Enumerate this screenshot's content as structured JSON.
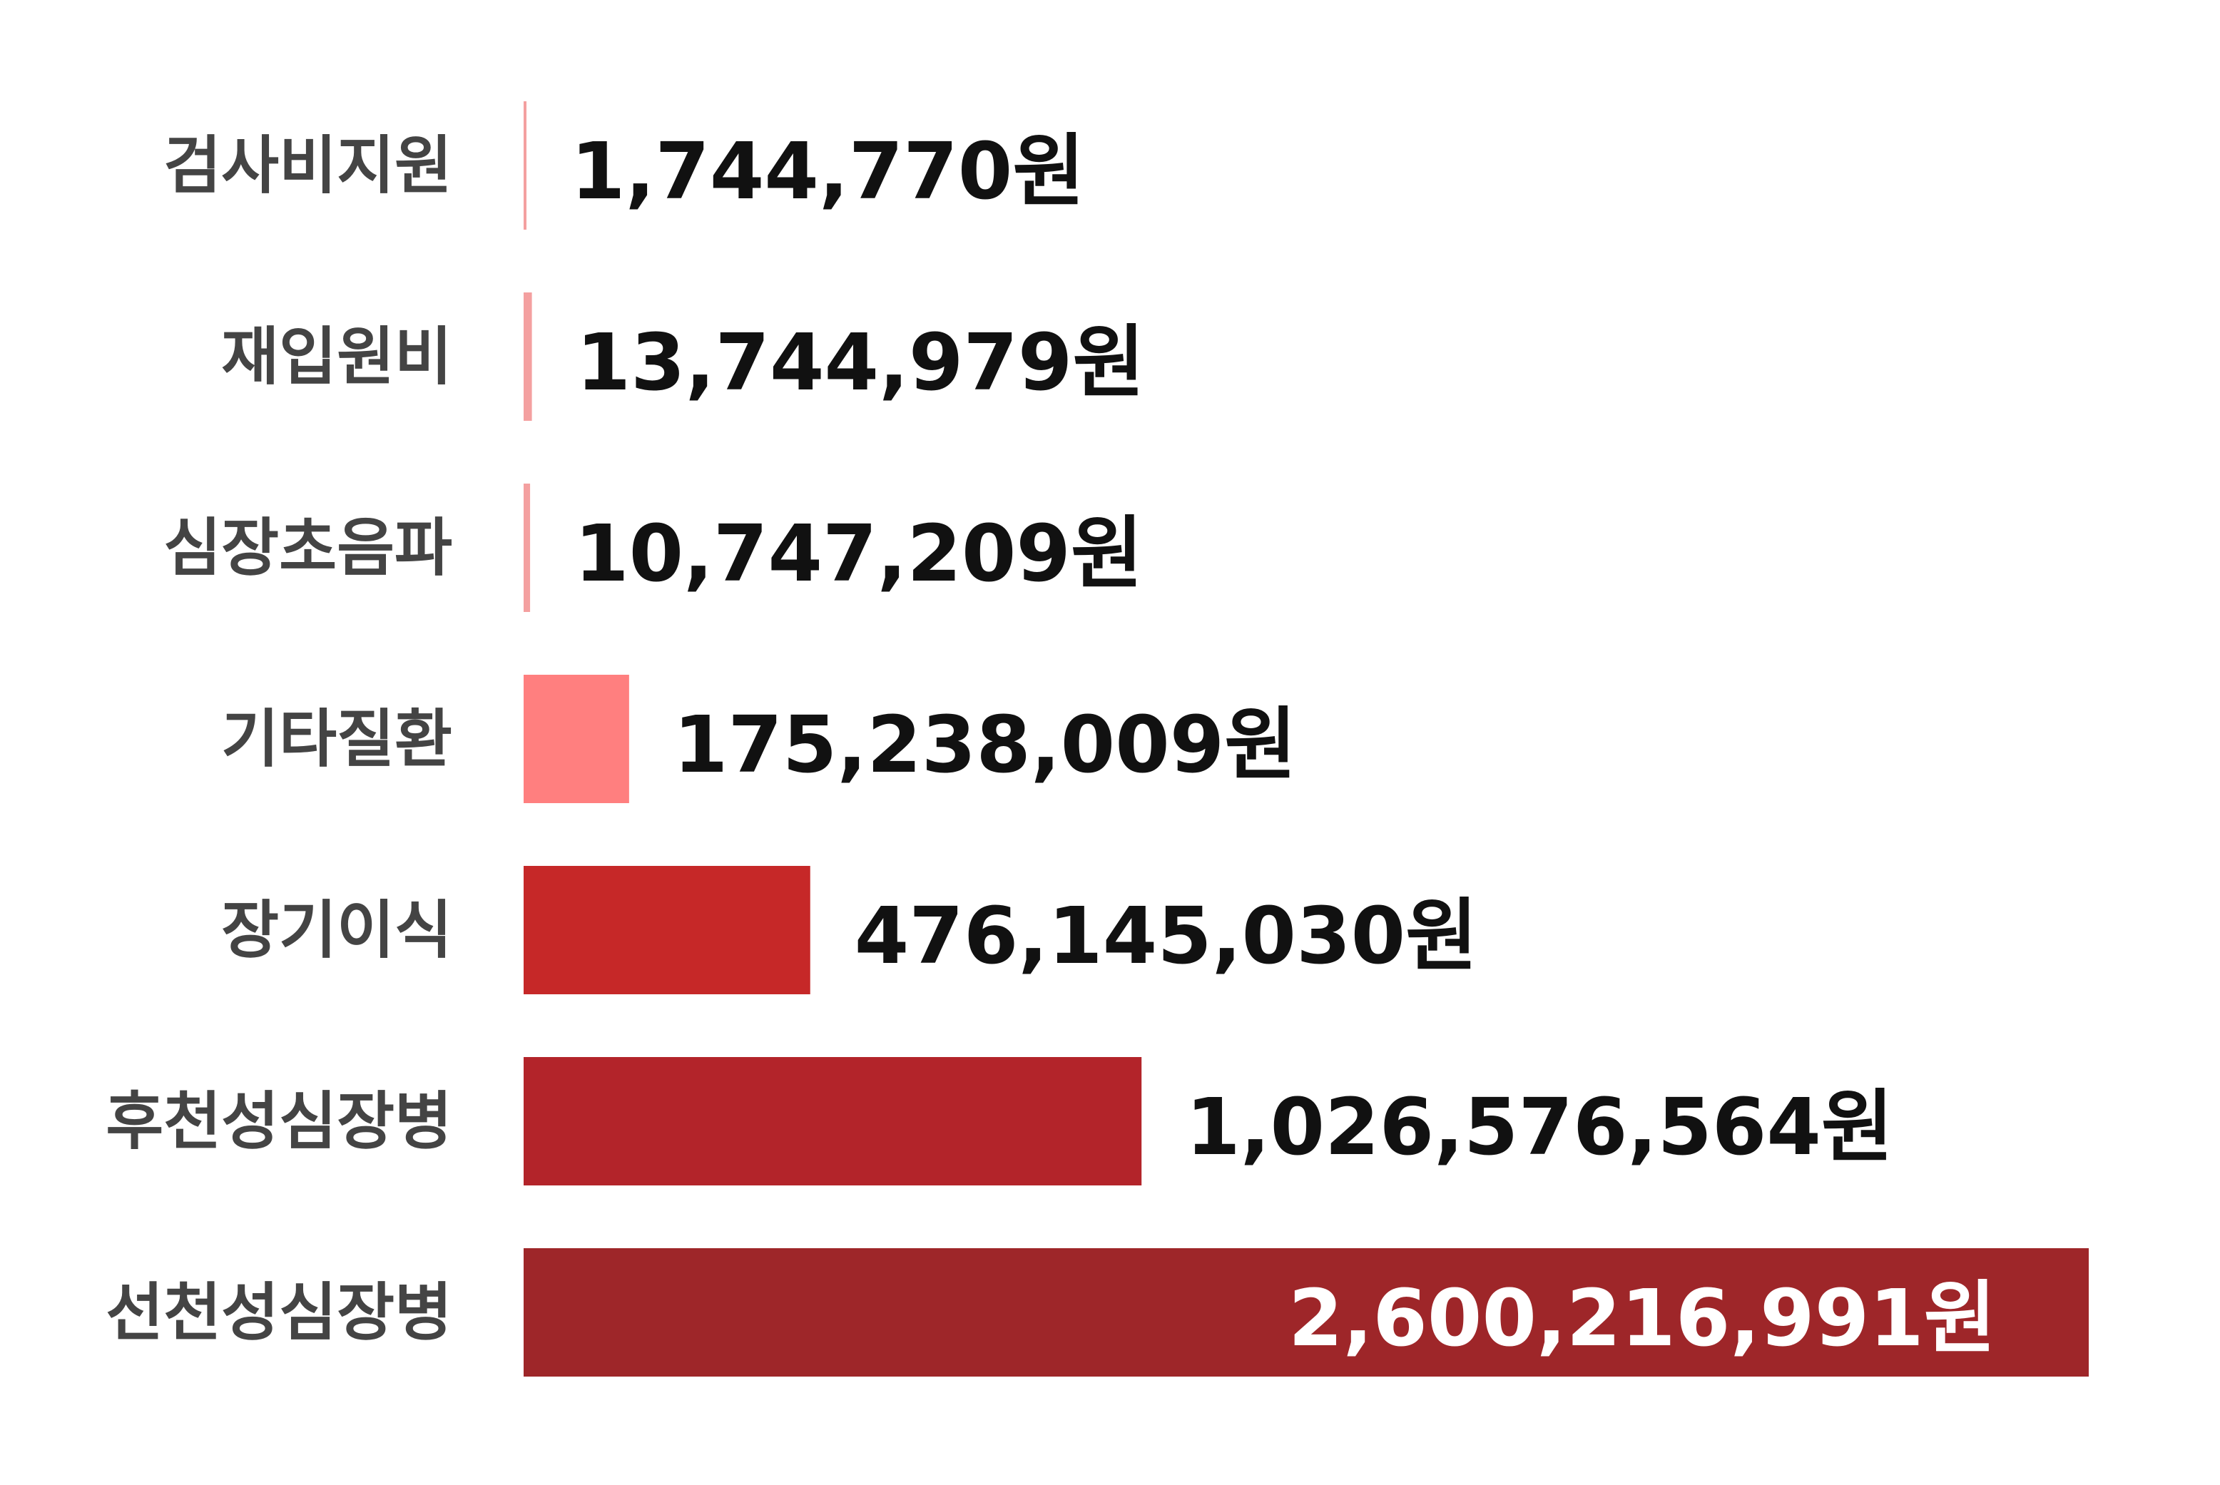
{
  "chart_data": {
    "type": "bar",
    "orientation": "horizontal",
    "categories": [
      "검사비지원",
      "재입원비",
      "심장초음파",
      "기타질환",
      "장기이식",
      "후천성심장병",
      "선천성심장병"
    ],
    "values": [
      1744770,
      13744979,
      10747209,
      175238009,
      476145030,
      1026576564,
      2600216991
    ],
    "value_labels": [
      "1,744,770원",
      "13,744,979원",
      "10,747,209원",
      "175,238,009원",
      "476,145,030원",
      "1,026,576,564원",
      "2,600,216,991원"
    ],
    "colors": [
      "#f4a0a0",
      "#f4a0a0",
      "#f4a0a0",
      "#ff7f7f",
      "#c62828",
      "#b3242a",
      "#9e2629"
    ],
    "xlim": [
      0,
      2600216991
    ],
    "grid": false,
    "legend": "none"
  }
}
